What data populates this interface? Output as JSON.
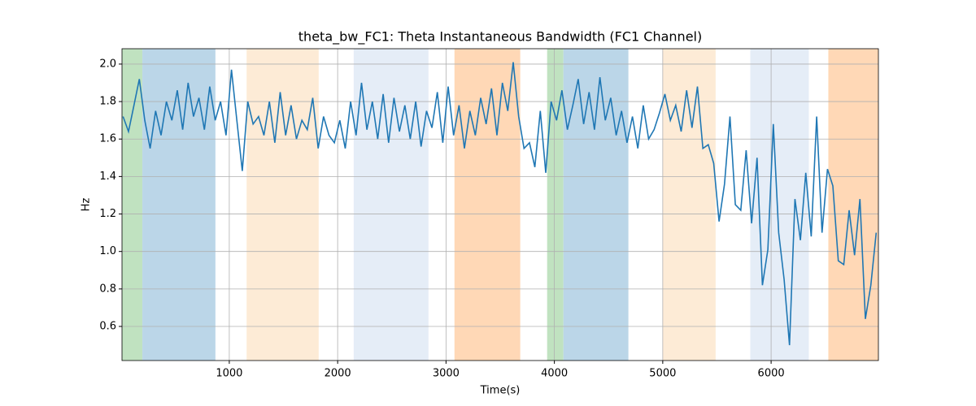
{
  "chart_data": {
    "type": "line",
    "title": "theta_bw_FC1: Theta Instantaneous Bandwidth (FC1 Channel)",
    "x_label": "Time(s)",
    "y_label": "Hz",
    "xlim": [
      10,
      6990
    ],
    "ylim": [
      0.418,
      2.082
    ],
    "xticks": [
      1000,
      2000,
      3000,
      4000,
      5000,
      6000
    ],
    "yticks": [
      0.6,
      0.8,
      {
        "value": 1,
        "label": "1.0"
      },
      1.2,
      1.4,
      1.6,
      1.8,
      {
        "value": 2,
        "label": "2.0"
      }
    ],
    "grid": true,
    "spans": [
      {
        "start": 10,
        "end": 198,
        "color": "#c0e2c0"
      },
      {
        "start": 198,
        "end": 872,
        "color": "#bbd6e8"
      },
      {
        "start": 1160,
        "end": 1825,
        "color": "#fdebd6"
      },
      {
        "start": 2148,
        "end": 2838,
        "color": "#e5edf7"
      },
      {
        "start": 3078,
        "end": 3685,
        "color": "#ffd8b6"
      },
      {
        "start": 3933,
        "end": 4083,
        "color": "#c0e2c0"
      },
      {
        "start": 4083,
        "end": 4683,
        "color": "#bbd6e8"
      },
      {
        "start": 5000,
        "end": 5488,
        "color": "#fdebd6"
      },
      {
        "start": 5808,
        "end": 6348,
        "color": "#e5edf7"
      },
      {
        "start": 6528,
        "end": 6990,
        "color": "#ffd8b6"
      }
    ],
    "x": [
      20,
      70,
      120,
      170,
      220,
      270,
      320,
      370,
      420,
      470,
      520,
      570,
      620,
      670,
      720,
      770,
      820,
      870,
      920,
      970,
      1020,
      1070,
      1120,
      1170,
      1220,
      1270,
      1320,
      1370,
      1420,
      1470,
      1520,
      1570,
      1620,
      1670,
      1720,
      1770,
      1820,
      1870,
      1920,
      1970,
      2020,
      2070,
      2120,
      2170,
      2220,
      2270,
      2320,
      2370,
      2420,
      2470,
      2520,
      2570,
      2620,
      2670,
      2720,
      2770,
      2820,
      2870,
      2920,
      2970,
      3020,
      3070,
      3120,
      3170,
      3220,
      3270,
      3320,
      3370,
      3420,
      3470,
      3520,
      3570,
      3620,
      3670,
      3720,
      3770,
      3820,
      3870,
      3920,
      3970,
      4020,
      4070,
      4120,
      4170,
      4220,
      4270,
      4320,
      4370,
      4420,
      4470,
      4520,
      4570,
      4620,
      4670,
      4720,
      4770,
      4820,
      4870,
      4920,
      4970,
      5020,
      5070,
      5120,
      5170,
      5220,
      5270,
      5320,
      5370,
      5420,
      5470,
      5520,
      5570,
      5620,
      5670,
      5720,
      5770,
      5820,
      5870,
      5920,
      5970,
      6020,
      6070,
      6120,
      6170,
      6220,
      6270,
      6320,
      6370,
      6420,
      6470,
      6520,
      6570,
      6620,
      6670,
      6720,
      6770,
      6820,
      6870,
      6920,
      6970
    ],
    "series": [
      {
        "color": "#1f77b4",
        "values": [
          1.72,
          1.64,
          1.78,
          1.92,
          1.7,
          1.55,
          1.75,
          1.62,
          1.8,
          1.7,
          1.86,
          1.65,
          1.9,
          1.72,
          1.82,
          1.65,
          1.88,
          1.7,
          1.8,
          1.62,
          1.97,
          1.7,
          1.43,
          1.8,
          1.68,
          1.72,
          1.62,
          1.8,
          1.58,
          1.85,
          1.62,
          1.78,
          1.6,
          1.7,
          1.65,
          1.82,
          1.55,
          1.72,
          1.62,
          1.58,
          1.7,
          1.55,
          1.8,
          1.62,
          1.9,
          1.65,
          1.8,
          1.6,
          1.84,
          1.58,
          1.82,
          1.64,
          1.78,
          1.6,
          1.8,
          1.56,
          1.75,
          1.66,
          1.85,
          1.58,
          1.88,
          1.62,
          1.78,
          1.55,
          1.75,
          1.62,
          1.82,
          1.68,
          1.87,
          1.62,
          1.9,
          1.75,
          2.01,
          1.72,
          1.55,
          1.58,
          1.45,
          1.75,
          1.42,
          1.8,
          1.7,
          1.86,
          1.65,
          1.78,
          1.92,
          1.68,
          1.85,
          1.65,
          1.93,
          1.7,
          1.82,
          1.62,
          1.75,
          1.58,
          1.72,
          1.55,
          1.78,
          1.6,
          1.65,
          1.74,
          1.84,
          1.7,
          1.78,
          1.64,
          1.86,
          1.66,
          1.88,
          1.55,
          1.57,
          1.47,
          1.16,
          1.36,
          1.72,
          1.25,
          1.22,
          1.54,
          1.15,
          1.5,
          0.82,
          1.01,
          1.68,
          1.1,
          0.85,
          0.5,
          1.28,
          1.06,
          1.42,
          1.08,
          1.72,
          1.1,
          1.44,
          1.35,
          0.95,
          0.93,
          1.22,
          0.98,
          1.28,
          0.64,
          0.82,
          1.1
        ]
      }
    ]
  }
}
